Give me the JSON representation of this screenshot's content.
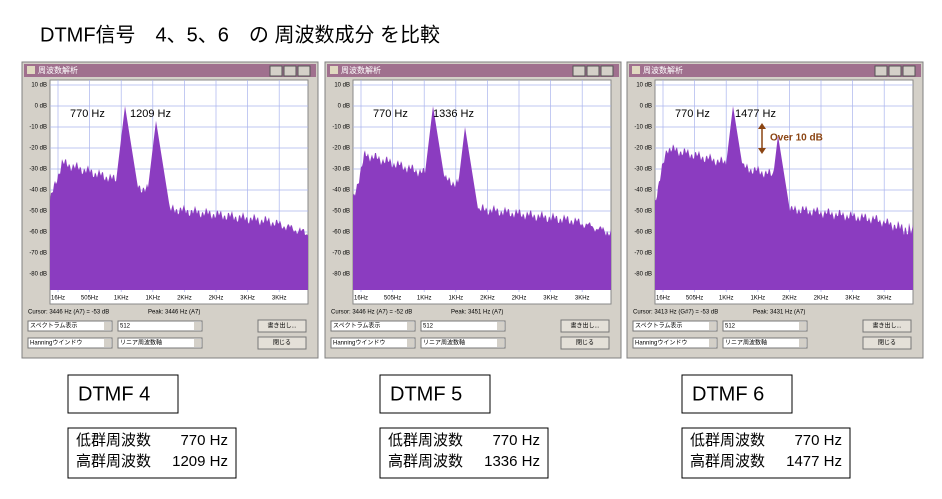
{
  "title": "DTMF信号　4、5、6　の 周波数成分 を比較",
  "windows": [
    {
      "title": "周波数解析",
      "y_labels": [
        "10 dB",
        "0 dB",
        "-10 dB",
        "-20 dB",
        "-30 dB",
        "-40 dB",
        "-50 dB",
        "-60 dB",
        "-70 dB",
        "-80 dB"
      ],
      "x_labels": [
        "16Hz",
        "505Hz",
        "1KHz",
        "1KHz",
        "2KHz",
        "2KHz",
        "3KHz",
        "3KHz"
      ],
      "peak_labels": [
        "770 Hz",
        "1209 Hz"
      ],
      "cursor": "Cursor: 3446 Hz (A7) = -53 dB",
      "peak": "Peak: 3446 Hz (A7)",
      "controls": [
        "スペクトラム表示",
        "512",
        "Hanningウインドウ",
        "リニア周波数軸"
      ],
      "buttons": [
        "書き出し...",
        "閉じる"
      ]
    },
    {
      "title": "周波数解析",
      "y_labels": [
        "10 dB",
        "0 dB",
        "-10 dB",
        "-20 dB",
        "-30 dB",
        "-40 dB",
        "-50 dB",
        "-60 dB",
        "-70 dB",
        "-80 dB"
      ],
      "x_labels": [
        "16Hz",
        "505Hz",
        "1KHz",
        "1KHz",
        "2KHz",
        "2KHz",
        "3KHz",
        "3KHz"
      ],
      "peak_labels": [
        "770 Hz",
        "1336 Hz"
      ],
      "cursor": "Cursor: 3446 Hz (A7) = -52 dB",
      "peak": "Peak: 3451 Hz (A7)",
      "controls": [
        "スペクトラム表示",
        "512",
        "Hanningウインドウ",
        "リニア周波数軸"
      ],
      "buttons": [
        "書き出し...",
        "閉じる"
      ]
    },
    {
      "title": "周波数解析",
      "y_labels": [
        "10 dB",
        "0 dB",
        "-10 dB",
        "-20 dB",
        "-30 dB",
        "-40 dB",
        "-50 dB",
        "-60 dB",
        "-70 dB",
        "-80 dB"
      ],
      "x_labels": [
        "16Hz",
        "505Hz",
        "1KHz",
        "1KHz",
        "2KHz",
        "2KHz",
        "3KHz",
        "3KHz"
      ],
      "peak_labels": [
        "770 Hz",
        "1477 Hz"
      ],
      "annotation": "Over  10 dB",
      "cursor": "Cursor: 3413 Hz (G#7) = -53 dB",
      "peak": "Peak: 3431 Hz (A7)",
      "controls": [
        "スペクトラム表示",
        "512",
        "Hanningウインドウ",
        "リニア周波数軸"
      ],
      "buttons": [
        "書き出し...",
        "閉じる"
      ]
    }
  ],
  "cards": [
    {
      "label": "DTMF 4",
      "rows": [
        [
          "低群周波数",
          "770 Hz"
        ],
        [
          "高群周波数",
          "1209 Hz"
        ]
      ]
    },
    {
      "label": "DTMF 5",
      "rows": [
        [
          "低群周波数",
          "770 Hz"
        ],
        [
          "高群周波数",
          "1336 Hz"
        ]
      ]
    },
    {
      "label": "DTMF 6",
      "rows": [
        [
          "低群周波数",
          "770 Hz"
        ],
        [
          "高群周波数",
          "1477 Hz"
        ]
      ]
    }
  ]
}
